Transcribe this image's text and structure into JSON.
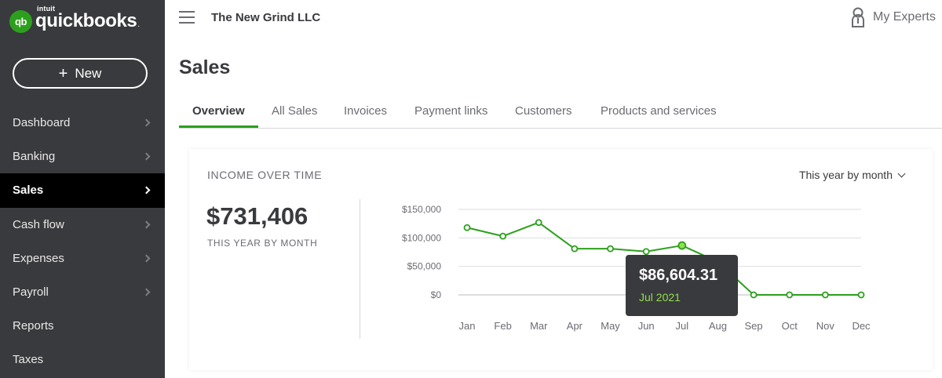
{
  "brand": {
    "intuit": "intuit",
    "name": "quickbooks",
    "dot": ".",
    "badge": "qb"
  },
  "sidebar": {
    "new_label": "New",
    "items": [
      {
        "label": "Dashboard",
        "has_chevron": true
      },
      {
        "label": "Banking",
        "has_chevron": true
      },
      {
        "label": "Sales",
        "has_chevron": true,
        "active": true
      },
      {
        "label": "Cash flow",
        "has_chevron": true
      },
      {
        "label": "Expenses",
        "has_chevron": true
      },
      {
        "label": "Payroll",
        "has_chevron": true
      },
      {
        "label": "Reports",
        "has_chevron": false
      },
      {
        "label": "Taxes",
        "has_chevron": false
      }
    ]
  },
  "header": {
    "company": "The New Grind LLC",
    "experts": "My Experts"
  },
  "page": {
    "title": "Sales"
  },
  "tabs": [
    {
      "label": "Overview",
      "active": true
    },
    {
      "label": "All Sales"
    },
    {
      "label": "Invoices"
    },
    {
      "label": "Payment links"
    },
    {
      "label": "Customers"
    },
    {
      "label": "Products and services"
    }
  ],
  "income": {
    "title": "INCOME OVER TIME",
    "range_label": "This year by month",
    "total": "$731,406",
    "total_sub": "THIS YEAR BY MONTH"
  },
  "tooltip": {
    "value": "$86,604.31",
    "label": "Jul 2021"
  },
  "chart_data": {
    "type": "line",
    "categories": [
      "Jan",
      "Feb",
      "Mar",
      "Apr",
      "May",
      "Jun",
      "Jul",
      "Aug",
      "Sep",
      "Oct",
      "Nov",
      "Dec"
    ],
    "values": [
      118000,
      103000,
      127000,
      81000,
      81000,
      76000,
      86604.31,
      58000,
      0,
      0,
      0,
      0
    ],
    "ylim": [
      0,
      150000
    ],
    "yticks": [
      {
        "value": 150000,
        "label": "$150,000"
      },
      {
        "value": 100000,
        "label": "$100,000"
      },
      {
        "value": 50000,
        "label": "$50,000"
      },
      {
        "value": 0,
        "label": "$0"
      }
    ],
    "highlight_index": 6,
    "color": "#2ca01c",
    "highlight_color": "#8fe04a",
    "grid": true
  }
}
